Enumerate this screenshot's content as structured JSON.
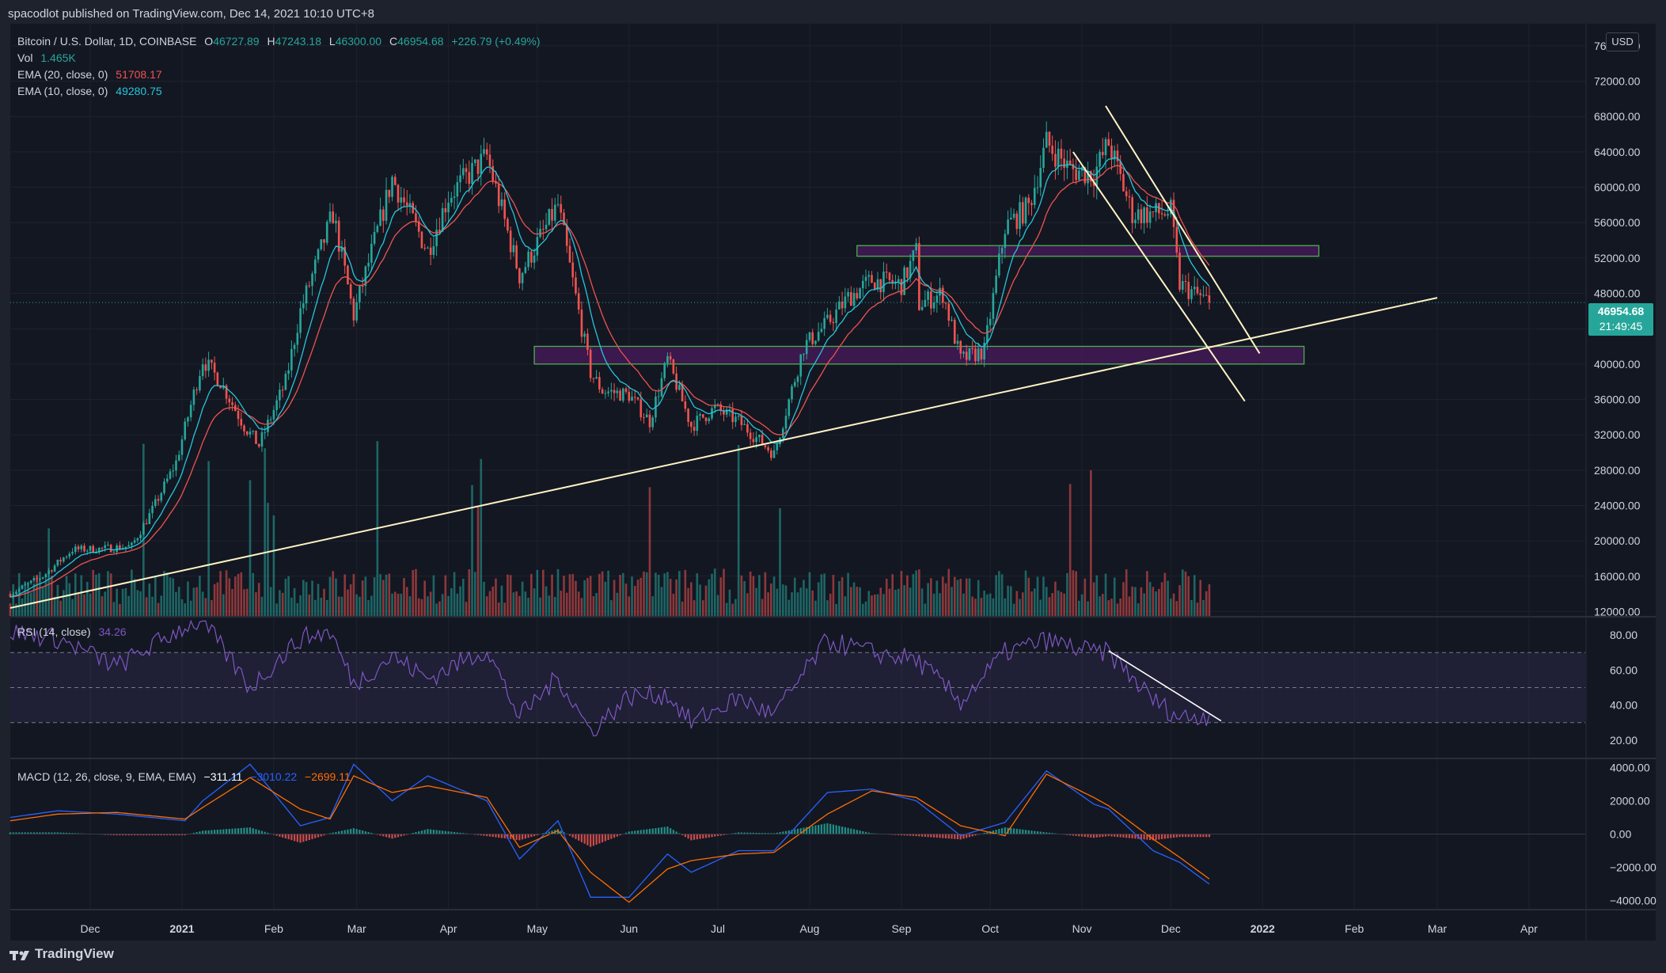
{
  "attribution": "spacodlot published on TradingView.com, Dec 14, 2021 10:10 UTC+8",
  "symbol": "Bitcoin / U.S. Dollar, 1D, COINBASE",
  "ohlc": {
    "o_key": "O",
    "o": "46727.89",
    "h_key": "H",
    "h": "47243.18",
    "l_key": "L",
    "l": "46300.00",
    "c_key": "C",
    "c": "46954.68",
    "change": "+226.79 (+0.49%)"
  },
  "indicators": {
    "vol_label": "Vol",
    "vol_value": "1.465K",
    "ema20_label": "EMA (20, close, 0)",
    "ema20_value": "51708.17",
    "ema10_label": "EMA (10, close, 0)",
    "ema10_value": "49280.75",
    "rsi_label": "RSI (14, close)",
    "rsi_value": "34.26",
    "macd_label": "MACD (12, 26, close, 9, EMA, EMA)",
    "macd_hist": "−311.11",
    "macd_line": "−3010.22",
    "macd_signal": "−2699.11"
  },
  "currency_button": "USD",
  "last_price": {
    "price": "46954.68",
    "countdown": "21:49:45"
  },
  "footer_brand": "TradingView",
  "colors": {
    "background": "#131722",
    "grid": "#1e222d",
    "up": "#26a69a",
    "down": "#ef5350",
    "ema20": "#ef5350",
    "ema10": "#26c6da",
    "rsi": "#7e57c2",
    "macd": "#2962ff",
    "signal": "#ff6d00",
    "trendline": "#fff3c4",
    "zone_border": "#4caf50",
    "zone_fill": "#4a1a5c"
  },
  "chart_data": [
    {
      "type": "candlestick",
      "title": "Bitcoin / U.S. Dollar, 1D, COINBASE",
      "x_ticks": [
        "Dec",
        "2021",
        "Feb",
        "Mar",
        "Apr",
        "May",
        "Jun",
        "Jul",
        "Aug",
        "Sep",
        "Oct",
        "Nov",
        "Dec",
        "2022",
        "Feb",
        "Mar",
        "Apr"
      ],
      "x_range": [
        "2020-11-04",
        "2022-04-20"
      ],
      "y_ticks": [
        "76000.00",
        "72000.00",
        "68000.00",
        "64000.00",
        "60000.00",
        "56000.00",
        "52000.00",
        "48000.00",
        "44000.00",
        "40000.00",
        "36000.00",
        "32000.00",
        "28000.00",
        "24000.00",
        "20000.00",
        "16000.00",
        "12000.00"
      ],
      "ylim": [
        11500,
        78500
      ],
      "grid": true,
      "close_series": {
        "dates": [
          "2020-11-04",
          "2020-11-15",
          "2020-11-25",
          "2020-12-05",
          "2020-12-15",
          "2020-12-22",
          "2020-12-30",
          "2021-01-08",
          "2021-01-14",
          "2021-01-22",
          "2021-01-27",
          "2021-02-05",
          "2021-02-10",
          "2021-02-21",
          "2021-02-28",
          "2021-03-13",
          "2021-03-25",
          "2021-04-01",
          "2021-04-14",
          "2021-04-25",
          "2021-05-08",
          "2021-05-12",
          "2021-05-19",
          "2021-05-23",
          "2021-06-01",
          "2021-06-08",
          "2021-06-14",
          "2021-06-22",
          "2021-06-30",
          "2021-07-08",
          "2021-07-20",
          "2021-07-30",
          "2021-08-07",
          "2021-08-14",
          "2021-08-22",
          "2021-09-01",
          "2021-09-06",
          "2021-09-07",
          "2021-09-15",
          "2021-09-21",
          "2021-09-29",
          "2021-10-06",
          "2021-10-14",
          "2021-10-20",
          "2021-10-28",
          "2021-11-05",
          "2021-11-10",
          "2021-11-18",
          "2021-11-25",
          "2021-12-01",
          "2021-12-04",
          "2021-12-09",
          "2021-12-14"
        ],
        "close": [
          14000,
          16000,
          19000,
          19100,
          19400,
          23500,
          28900,
          40500,
          38000,
          33000,
          30800,
          38000,
          46000,
          57000,
          45500,
          61000,
          52800,
          59000,
          63500,
          50000,
          58000,
          51000,
          39000,
          37000,
          36500,
          33500,
          40500,
          33000,
          35000,
          33500,
          29800,
          42000,
          44600,
          47500,
          49500,
          49000,
          52700,
          46800,
          48000,
          40500,
          41500,
          55500,
          57800,
          65000,
          62000,
          61500,
          65000,
          57000,
          57000,
          57200,
          49000,
          48000,
          46954
        ]
      },
      "volume_note": "volume bars shown on price pane (scaled)",
      "overlays": {
        "horizontal_zones": [
          {
            "label": "",
            "low": 40000,
            "high": 42000,
            "from": "2021-04-30",
            "to": "2022-01-15"
          },
          {
            "label": "",
            "low": 52200,
            "high": 53400,
            "from": "2021-08-17",
            "to": "2022-01-20"
          }
        ],
        "trendlines": [
          {
            "from": [
              "2020-11-04",
              12400
            ],
            "to": [
              "2022-03-01",
              47500
            ]
          },
          {
            "from": [
              "2021-11-09",
              69200
            ],
            "to": [
              "2021-12-31",
              41200
            ]
          },
          {
            "from": [
              "2021-10-29",
              64000
            ],
            "to": [
              "2021-12-26",
              35800
            ]
          }
        ],
        "last_price_line": 46954.68
      }
    },
    {
      "type": "line",
      "title": "RSI (14, close)",
      "y_ticks": [
        "80.00",
        "60.00",
        "40.00",
        "20.00"
      ],
      "ylim": [
        10,
        90
      ],
      "bands": [
        30,
        50,
        70
      ],
      "x": [
        "2020-11-04",
        "2020-11-20",
        "2020-12-10",
        "2021-01-02",
        "2021-01-08",
        "2021-01-24",
        "2021-02-10",
        "2021-02-20",
        "2021-02-28",
        "2021-03-13",
        "2021-03-25",
        "2021-04-14",
        "2021-04-25",
        "2021-05-08",
        "2021-05-19",
        "2021-06-01",
        "2021-06-14",
        "2021-06-22",
        "2021-07-08",
        "2021-07-20",
        "2021-08-07",
        "2021-08-22",
        "2021-09-06",
        "2021-09-21",
        "2021-10-06",
        "2021-10-20",
        "2021-11-05",
        "2021-11-10",
        "2021-11-25",
        "2021-12-04",
        "2021-12-14"
      ],
      "values": [
        82,
        78,
        62,
        85,
        88,
        50,
        78,
        82,
        52,
        68,
        55,
        72,
        33,
        56,
        25,
        45,
        46,
        30,
        44,
        34,
        77,
        70,
        66,
        42,
        70,
        77,
        70,
        70,
        43,
        33,
        34.26
      ],
      "trendline": {
        "from": [
          "2021-11-10",
          71
        ],
        "to": [
          "2021-12-18",
          31
        ]
      }
    },
    {
      "type": "line",
      "title": "MACD (12, 26, close, 9, EMA, EMA)",
      "y_ticks": [
        "4000.00",
        "2000.00",
        "0.00",
        "−2000.00",
        "−4000.00"
      ],
      "ylim": [
        -4500,
        4500
      ],
      "series": [
        {
          "name": "MACD",
          "values": [
            1000,
            1400,
            1200,
            800,
            2000,
            4200,
            500,
            1000,
            4200,
            2000,
            3500,
            2000,
            -1500,
            800,
            -3800,
            -3800,
            -1200,
            -2300,
            -1000,
            -1000,
            2500,
            2700,
            2000,
            -100,
            700,
            3800,
            1800,
            1500,
            -1000,
            -1700,
            -3010
          ]
        },
        {
          "name": "Signal",
          "values": [
            800,
            1200,
            1300,
            900,
            1600,
            3400,
            1500,
            900,
            3500,
            2500,
            2900,
            2200,
            -800,
            200,
            -2300,
            -4100,
            -2100,
            -1600,
            -1200,
            -1100,
            1200,
            2600,
            2200,
            500,
            -100,
            3600,
            2200,
            1700,
            -300,
            -1400,
            -2699
          ]
        }
      ],
      "x": [
        "2020-11-04",
        "2020-11-20",
        "2020-12-10",
        "2021-01-02",
        "2021-01-08",
        "2021-01-24",
        "2021-02-10",
        "2021-02-20",
        "2021-02-28",
        "2021-03-13",
        "2021-03-25",
        "2021-04-14",
        "2021-04-25",
        "2021-05-08",
        "2021-05-19",
        "2021-06-01",
        "2021-06-14",
        "2021-06-22",
        "2021-07-08",
        "2021-07-20",
        "2021-08-07",
        "2021-08-22",
        "2021-09-06",
        "2021-09-21",
        "2021-10-06",
        "2021-10-20",
        "2021-11-05",
        "2021-11-10",
        "2021-11-25",
        "2021-12-04",
        "2021-12-14"
      ]
    }
  ]
}
